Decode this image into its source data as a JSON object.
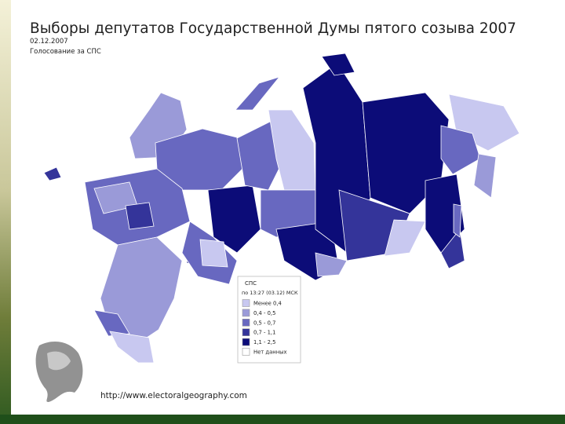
{
  "header": {
    "title": "Выборы депутатов Государственной Думы пятого созыва 2007",
    "date": "02.12.2007",
    "subtitle": "Голосование за СПС"
  },
  "legend": {
    "title": "СПС",
    "time": "по 13:27 (03.12) МСК",
    "items": [
      {
        "label": "Менее 0,4",
        "color": "#c8c8f0"
      },
      {
        "label": "0,4 - 0,5",
        "color": "#9a9ad8"
      },
      {
        "label": "0,5 - 0,7",
        "color": "#6868c0"
      },
      {
        "label": "0,7 - 1,1",
        "color": "#34349a"
      },
      {
        "label": "1,1 - 2,5",
        "color": "#0c0c78"
      },
      {
        "label": "Нет данных",
        "color": "#ffffff"
      }
    ]
  },
  "footer": {
    "url": "http://www.electoralgeography.com"
  }
}
